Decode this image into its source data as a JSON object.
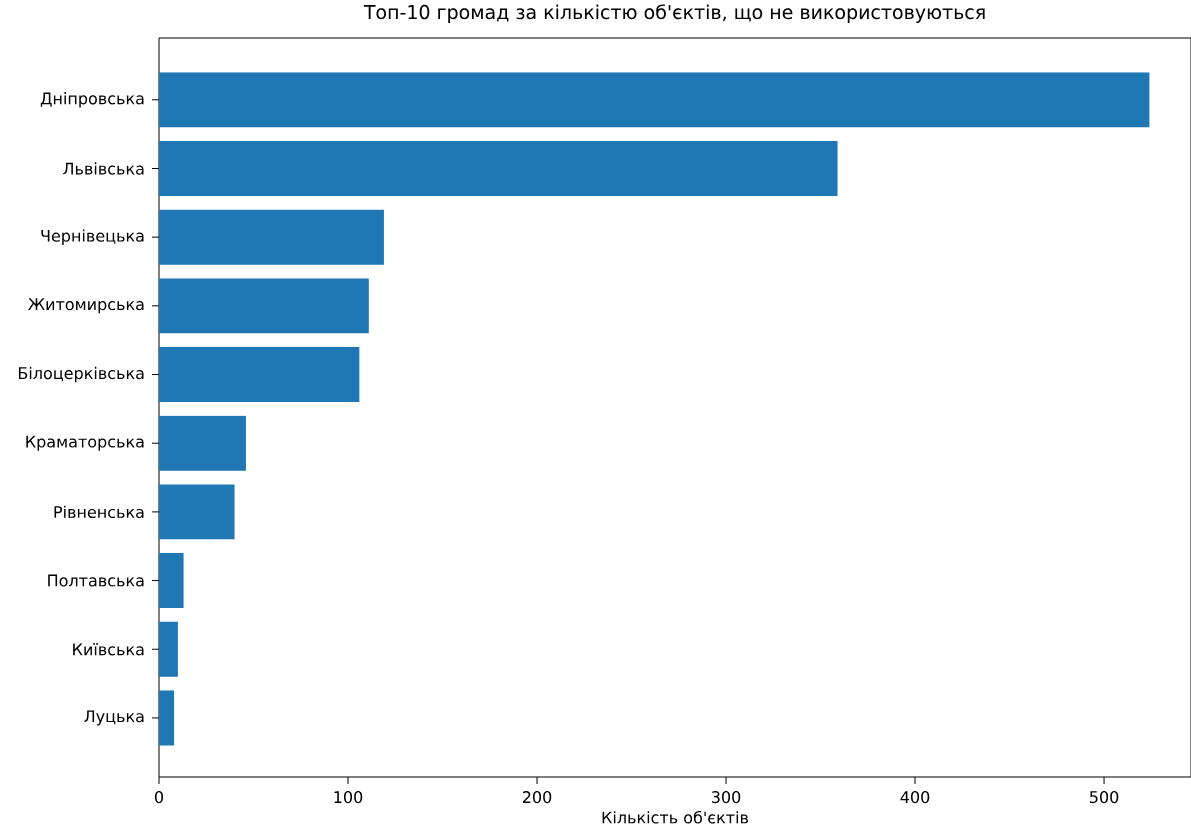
{
  "chart_data": {
    "type": "bar",
    "orientation": "horizontal",
    "title": "Топ-10 громад за кількістю об'єктів, що не використовуються",
    "xlabel": "Кількість об'єктів",
    "categories": [
      "Дніпровська",
      "Львівська",
      "Чернівецька",
      "Житомирська",
      "Білоцерківська",
      "Краматорська",
      "Рівненська",
      "Полтавська",
      "Київська",
      "Луцька"
    ],
    "values": [
      524,
      359,
      119,
      111,
      106,
      46,
      40,
      13,
      10,
      8
    ],
    "color": "#1f77b4",
    "xlim": [
      0,
      546
    ],
    "xticks": [
      0,
      100,
      200,
      300,
      400,
      500
    ]
  }
}
